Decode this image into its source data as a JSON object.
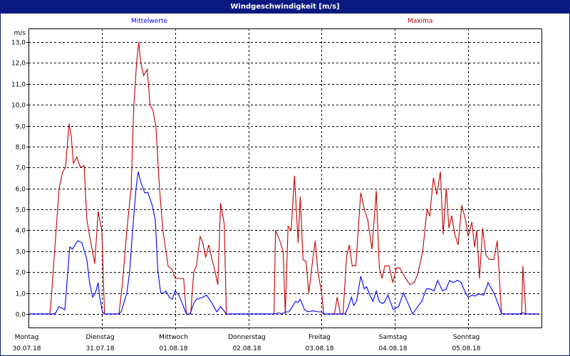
{
  "window": {
    "title": "Windgeschwindigkeit [m/s]"
  },
  "chart_data": {
    "type": "line",
    "title": "Windgeschwindigkeit [m/s]",
    "ylabel": "m/s",
    "ylim": [
      -0.65,
      13.65
    ],
    "xlim": [
      "2018-07-30 00:00",
      "2018-08-06 00:00"
    ],
    "yticks": [
      "0,0",
      "1,0",
      "2,0",
      "3,0",
      "4,0",
      "5,0",
      "6,0",
      "7,0",
      "8,0",
      "9,0",
      "10,0",
      "11,0",
      "12,0",
      "13,0"
    ],
    "xticks": [
      {
        "day": "Montag",
        "date": "30.07.18"
      },
      {
        "day": "Dienstag",
        "date": "31.07.18"
      },
      {
        "day": "Mittwoch",
        "date": "01.08.18"
      },
      {
        "day": "Donnerstag",
        "date": "02.08.18"
      },
      {
        "day": "Freitag",
        "date": "03.08.18"
      },
      {
        "day": "Samstag",
        "date": "04.08.18"
      },
      {
        "day": "Sonntag",
        "date": "05.08.18"
      }
    ],
    "grid": true,
    "series": [
      {
        "name": "Mittelwerte",
        "color": "#0000ff",
        "points": [
          [
            "2018-07-30 00:00",
            0
          ],
          [
            "2018-07-30 08:12",
            0
          ],
          [
            "2018-07-30 08:54",
            0.05
          ],
          [
            "2018-07-30 10:00",
            0.35
          ],
          [
            "2018-07-30 11:54",
            0.2
          ],
          [
            "2018-07-30 13:30",
            3.2
          ],
          [
            "2018-07-30 14:24",
            3.1
          ],
          [
            "2018-07-30 16:06",
            3.5
          ],
          [
            "2018-07-30 17:30",
            3.4
          ],
          [
            "2018-07-30 19:06",
            2.6
          ],
          [
            "2018-07-30 20:00",
            1.5
          ],
          [
            "2018-07-30 21:00",
            0.8
          ],
          [
            "2018-07-30 21:54",
            1.0
          ],
          [
            "2018-07-30 22:48",
            1.5
          ],
          [
            "2018-07-30 23:18",
            0.8
          ],
          [
            "2018-07-31 00:12",
            0.1
          ],
          [
            "2018-07-31 00:54",
            0
          ],
          [
            "2018-07-31 05:36",
            0
          ],
          [
            "2018-07-31 06:18",
            0.1
          ],
          [
            "2018-07-31 07:12",
            0.5
          ],
          [
            "2018-07-31 08:12",
            1.0
          ],
          [
            "2018-07-31 09:06",
            2.0
          ],
          [
            "2018-07-31 10:00",
            3.8
          ],
          [
            "2018-07-31 11:12",
            6.0
          ],
          [
            "2018-07-31 11:54",
            6.8
          ],
          [
            "2018-07-31 12:48",
            6.3
          ],
          [
            "2018-07-31 14:00",
            5.8
          ],
          [
            "2018-07-31 15:06",
            5.8
          ],
          [
            "2018-07-31 16:30",
            5.2
          ],
          [
            "2018-07-31 17:30",
            4.5
          ],
          [
            "2018-07-31 18:24",
            2.0
          ],
          [
            "2018-07-31 19:18",
            1.0
          ],
          [
            "2018-07-31 20:18",
            1.0
          ],
          [
            "2018-07-31 21:00",
            1.1
          ],
          [
            "2018-07-31 22:06",
            0.8
          ],
          [
            "2018-07-31 23:06",
            0.7
          ],
          [
            "2018-08-01 00:00",
            1.1
          ],
          [
            "2018-08-01 01:12",
            0.9
          ],
          [
            "2018-08-01 02:06",
            0.6
          ],
          [
            "2018-08-01 03:42",
            0
          ],
          [
            "2018-08-01 04:54",
            0
          ],
          [
            "2018-08-01 06:06",
            0.5
          ],
          [
            "2018-08-01 07:00",
            0.7
          ],
          [
            "2018-08-01 09:06",
            0.8
          ],
          [
            "2018-08-01 10:18",
            0.9
          ],
          [
            "2018-08-01 11:42",
            0.6
          ],
          [
            "2018-08-01 13:42",
            0.1
          ],
          [
            "2018-08-01 14:54",
            0.35
          ],
          [
            "2018-08-01 16:48",
            0
          ],
          [
            "2018-08-02 08:24",
            0
          ],
          [
            "2018-08-02 10:00",
            0.05
          ],
          [
            "2018-08-02 10:54",
            0
          ],
          [
            "2018-08-02 12:18",
            0.1
          ],
          [
            "2018-08-02 13:18",
            0.1
          ],
          [
            "2018-08-02 14:12",
            0.3
          ],
          [
            "2018-08-02 15:24",
            0.6
          ],
          [
            "2018-08-02 16:18",
            0.55
          ],
          [
            "2018-08-02 17:00",
            0.7
          ],
          [
            "2018-08-02 18:24",
            0.2
          ],
          [
            "2018-08-02 19:36",
            0.1
          ],
          [
            "2018-08-02 21:12",
            0.15
          ],
          [
            "2018-08-02 22:48",
            0.1
          ],
          [
            "2018-08-03 00:00",
            0.1
          ],
          [
            "2018-08-03 00:42",
            0
          ],
          [
            "2018-08-03 07:42",
            0
          ],
          [
            "2018-08-03 08:36",
            0.3
          ],
          [
            "2018-08-03 09:48",
            0.8
          ],
          [
            "2018-08-03 10:30",
            0.4
          ],
          [
            "2018-08-03 11:24",
            0.6
          ],
          [
            "2018-08-03 12:48",
            1.8
          ],
          [
            "2018-08-03 14:00",
            1.2
          ],
          [
            "2018-08-03 14:42",
            1.3
          ],
          [
            "2018-08-03 15:48",
            0.9
          ],
          [
            "2018-08-03 16:48",
            0.6
          ],
          [
            "2018-08-03 17:54",
            1.1
          ],
          [
            "2018-08-03 18:54",
            0.6
          ],
          [
            "2018-08-03 19:48",
            0.5
          ],
          [
            "2018-08-03 20:30",
            0.55
          ],
          [
            "2018-08-03 21:42",
            0.9
          ],
          [
            "2018-08-03 23:30",
            0.2
          ],
          [
            "2018-08-04 01:12",
            0.35
          ],
          [
            "2018-08-04 02:48",
            1.0
          ],
          [
            "2018-08-04 04:00",
            0.6
          ],
          [
            "2018-08-04 05:48",
            0
          ],
          [
            "2018-08-04 07:42",
            0.4
          ],
          [
            "2018-08-04 08:48",
            0.6
          ],
          [
            "2018-08-04 10:18",
            1.2
          ],
          [
            "2018-08-04 11:24",
            1.2
          ],
          [
            "2018-08-04 12:48",
            1.1
          ],
          [
            "2018-08-04 14:00",
            1.6
          ],
          [
            "2018-08-04 15:36",
            1.1
          ],
          [
            "2018-08-04 16:48",
            1.2
          ],
          [
            "2018-08-04 17:54",
            1.6
          ],
          [
            "2018-08-04 19:06",
            1.5
          ],
          [
            "2018-08-04 20:30",
            1.6
          ],
          [
            "2018-08-04 21:42",
            1.5
          ],
          [
            "2018-08-04 23:06",
            1.0
          ],
          [
            "2018-08-05 00:00",
            0.8
          ],
          [
            "2018-08-05 01:24",
            0.9
          ],
          [
            "2018-08-05 02:18",
            0.85
          ],
          [
            "2018-08-05 03:18",
            0.95
          ],
          [
            "2018-08-05 05:06",
            0.9
          ],
          [
            "2018-08-05 06:30",
            1.5
          ],
          [
            "2018-08-05 08:24",
            1.0
          ],
          [
            "2018-08-05 09:30",
            0.6
          ],
          [
            "2018-08-05 10:54",
            0
          ],
          [
            "2018-08-05 16:48",
            0
          ],
          [
            "2018-08-05 17:54",
            0.05
          ],
          [
            "2018-08-05 19:06",
            0
          ],
          [
            "2018-08-05 23:06",
            0
          ]
        ]
      },
      {
        "name": "Maxima",
        "color": "#c00000",
        "points": [
          [
            "2018-07-30 00:00",
            0
          ],
          [
            "2018-07-30 07:00",
            0
          ],
          [
            "2018-07-30 07:30",
            0.8
          ],
          [
            "2018-07-30 10:00",
            6.0
          ],
          [
            "2018-07-30 11:12",
            6.8
          ],
          [
            "2018-07-30 12:06",
            7.0
          ],
          [
            "2018-07-30 13:18",
            9.1
          ],
          [
            "2018-07-30 14:00",
            8.5
          ],
          [
            "2018-07-30 14:42",
            7.2
          ],
          [
            "2018-07-30 15:48",
            7.5
          ],
          [
            "2018-07-30 17:00",
            7.0
          ],
          [
            "2018-07-30 18:12",
            7.1
          ],
          [
            "2018-07-30 19:06",
            4.5
          ],
          [
            "2018-07-30 20:18",
            3.5
          ],
          [
            "2018-07-30 21:42",
            2.4
          ],
          [
            "2018-07-30 22:48",
            4.9
          ],
          [
            "2018-07-31 00:00",
            4.0
          ],
          [
            "2018-07-31 00:54",
            0
          ],
          [
            "2018-07-31 05:36",
            0
          ],
          [
            "2018-07-31 06:48",
            1.5
          ],
          [
            "2018-07-31 08:12",
            4.0
          ],
          [
            "2018-07-31 09:36",
            6.0
          ],
          [
            "2018-07-31 10:30",
            10.0
          ],
          [
            "2018-07-31 11:24",
            12.0
          ],
          [
            "2018-07-31 12:06",
            13.0
          ],
          [
            "2018-07-31 12:48",
            12.0
          ],
          [
            "2018-07-31 13:42",
            11.4
          ],
          [
            "2018-07-31 14:54",
            11.7
          ],
          [
            "2018-07-31 15:48",
            10.0
          ],
          [
            "2018-07-31 16:48",
            9.7
          ],
          [
            "2018-07-31 17:42",
            9.0
          ],
          [
            "2018-07-31 18:54",
            6.0
          ],
          [
            "2018-07-31 20:00",
            4.0
          ],
          [
            "2018-07-31 21:42",
            2.3
          ],
          [
            "2018-07-31 23:06",
            2.1
          ],
          [
            "2018-08-01 00:00",
            1.7
          ],
          [
            "2018-08-01 02:48",
            1.7
          ],
          [
            "2018-08-01 03:42",
            0
          ],
          [
            "2018-08-01 05:06",
            0
          ],
          [
            "2018-08-01 06:06",
            2.0
          ],
          [
            "2018-08-01 07:00",
            2.3
          ],
          [
            "2018-08-01 08:12",
            3.7
          ],
          [
            "2018-08-01 09:06",
            3.4
          ],
          [
            "2018-08-01 10:00",
            2.7
          ],
          [
            "2018-08-01 11:00",
            3.3
          ],
          [
            "2018-08-01 12:06",
            2.6
          ],
          [
            "2018-08-01 13:00",
            2.1
          ],
          [
            "2018-08-01 14:00",
            1.4
          ],
          [
            "2018-08-01 14:54",
            5.3
          ],
          [
            "2018-08-01 16:06",
            4.3
          ],
          [
            "2018-08-01 16:48",
            0
          ],
          [
            "2018-08-02 08:24",
            0
          ],
          [
            "2018-08-02 08:54",
            4.0
          ],
          [
            "2018-08-02 10:18",
            3.5
          ],
          [
            "2018-08-02 11:24",
            3.0
          ],
          [
            "2018-08-02 12:06",
            0
          ],
          [
            "2018-08-02 13:00",
            4.2
          ],
          [
            "2018-08-02 14:00",
            4.0
          ],
          [
            "2018-08-02 15:06",
            6.6
          ],
          [
            "2018-08-02 16:18",
            3.4
          ],
          [
            "2018-08-02 17:00",
            5.6
          ],
          [
            "2018-08-02 17:54",
            2.6
          ],
          [
            "2018-08-02 18:54",
            2.5
          ],
          [
            "2018-08-02 19:48",
            1.0
          ],
          [
            "2018-08-02 21:00",
            2.5
          ],
          [
            "2018-08-02 21:54",
            3.5
          ],
          [
            "2018-08-02 22:48",
            2.0
          ],
          [
            "2018-08-03 00:00",
            1.0
          ],
          [
            "2018-08-03 00:42",
            0
          ],
          [
            "2018-08-03 04:12",
            0
          ],
          [
            "2018-08-03 05:06",
            0.8
          ],
          [
            "2018-08-03 06:06",
            0
          ],
          [
            "2018-08-03 07:00",
            0
          ],
          [
            "2018-08-03 08:12",
            2.8
          ],
          [
            "2018-08-03 09:06",
            3.3
          ],
          [
            "2018-08-03 10:00",
            2.3
          ],
          [
            "2018-08-03 11:12",
            2.3
          ],
          [
            "2018-08-03 12:48",
            5.8
          ],
          [
            "2018-08-03 14:00",
            5.0
          ],
          [
            "2018-08-03 15:06",
            4.5
          ],
          [
            "2018-08-03 16:30",
            3.1
          ],
          [
            "2018-08-03 17:54",
            5.9
          ],
          [
            "2018-08-03 18:54",
            2.2
          ],
          [
            "2018-08-03 19:48",
            1.7
          ],
          [
            "2018-08-03 20:42",
            2.3
          ],
          [
            "2018-08-03 22:06",
            2.3
          ],
          [
            "2018-08-03 23:18",
            1.5
          ],
          [
            "2018-08-04 00:30",
            2.2
          ],
          [
            "2018-08-04 01:36",
            2.2
          ],
          [
            "2018-08-04 03:30",
            1.7
          ],
          [
            "2018-08-04 04:54",
            1.4
          ],
          [
            "2018-08-04 06:18",
            1.5
          ],
          [
            "2018-08-04 07:30",
            1.9
          ],
          [
            "2018-08-04 09:06",
            3.0
          ],
          [
            "2018-08-04 10:30",
            5.0
          ],
          [
            "2018-08-04 11:24",
            4.7
          ],
          [
            "2018-08-04 12:36",
            6.5
          ],
          [
            "2018-08-04 13:42",
            5.7
          ],
          [
            "2018-08-04 14:54",
            6.8
          ],
          [
            "2018-08-04 15:48",
            3.8
          ],
          [
            "2018-08-04 16:48",
            6.0
          ],
          [
            "2018-08-04 17:42",
            4.1
          ],
          [
            "2018-08-04 18:36",
            4.7
          ],
          [
            "2018-08-04 19:36",
            3.8
          ],
          [
            "2018-08-04 20:42",
            3.3
          ],
          [
            "2018-08-04 21:54",
            5.2
          ],
          [
            "2018-08-04 23:06",
            4.5
          ],
          [
            "2018-08-05 00:00",
            3.7
          ],
          [
            "2018-08-05 01:12",
            4.4
          ],
          [
            "2018-08-05 02:06",
            3.2
          ],
          [
            "2018-08-05 02:48",
            4.0
          ],
          [
            "2018-08-05 03:42",
            1.7
          ],
          [
            "2018-08-05 04:42",
            4.1
          ],
          [
            "2018-08-05 05:48",
            2.8
          ],
          [
            "2018-08-05 07:00",
            2.6
          ],
          [
            "2018-08-05 08:24",
            2.6
          ],
          [
            "2018-08-05 09:30",
            3.5
          ],
          [
            "2018-08-05 10:54",
            0
          ],
          [
            "2018-08-05 17:30",
            0
          ],
          [
            "2018-08-05 17:54",
            2.3
          ],
          [
            "2018-08-05 18:54",
            0
          ],
          [
            "2018-08-05 23:06",
            0
          ]
        ]
      }
    ]
  }
}
